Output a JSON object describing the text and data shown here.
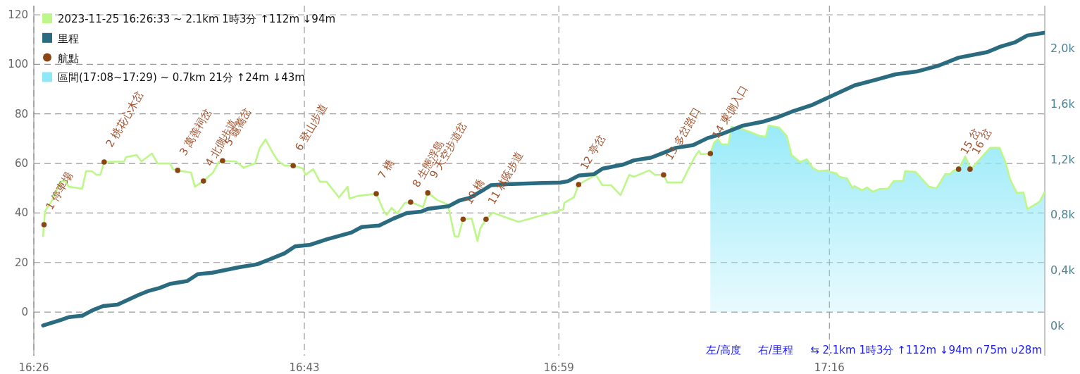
{
  "chart_data": {
    "type": "line",
    "xlim": [
      16.4333,
      17.4923
    ],
    "xticks": [
      {
        "value": 16.4333,
        "label": "16:26"
      },
      {
        "value": 16.7167,
        "label": "16:43"
      },
      {
        "value": 16.9833,
        "label": "16:59"
      },
      {
        "value": 17.2667,
        "label": "17:16"
      }
    ],
    "ylim": [
      -17.6,
      123.7
    ],
    "yticks": [
      0,
      20,
      40,
      60,
      80,
      100,
      120
    ],
    "y2lim": [
      -0.218,
      2.305
    ],
    "y2ticks": [
      {
        "value": 0,
        "label": "0k"
      },
      {
        "value": 0.4,
        "label": "0,4k"
      },
      {
        "value": 0.8,
        "label": "0,8k"
      },
      {
        "value": 1.2,
        "label": "1,2k"
      },
      {
        "value": 1.6,
        "label": "1,6k"
      },
      {
        "value": 2.0,
        "label": "2,0k"
      }
    ],
    "grid": true,
    "legend": "top left",
    "series": [
      {
        "name": "2023-11-25 16:26:33 ~ 2.1km 1時3分 ↑112m ↓94m",
        "color": "#bdf78a",
        "x": [
          16.443,
          16.445,
          16.45,
          16.454,
          16.461,
          16.466,
          16.47,
          16.484,
          16.488,
          16.494,
          16.499,
          16.503,
          16.507,
          16.528,
          16.53,
          16.541,
          16.546,
          16.557,
          16.563,
          16.576,
          16.579,
          16.584,
          16.598,
          16.602,
          16.611,
          16.621,
          16.627,
          16.631,
          16.645,
          16.653,
          16.665,
          16.67,
          16.676,
          16.684,
          16.689,
          16.696,
          16.705,
          16.715,
          16.718,
          16.726,
          16.733,
          16.74,
          16.753,
          16.762,
          16.764,
          16.773,
          16.792,
          16.8,
          16.803,
          16.808,
          16.814,
          16.822,
          16.828,
          16.841,
          16.846,
          16.856,
          16.867,
          16.874,
          16.878,
          16.883,
          16.892,
          16.898,
          16.901,
          16.907,
          16.914,
          16.941,
          16.988,
          16.989,
          16.999,
          17.004,
          17.022,
          17.029,
          17.038,
          17.048,
          17.057,
          17.062,
          17.078,
          17.084,
          17.093,
          17.097,
          17.112,
          17.119,
          17.126,
          17.13,
          17.132,
          17.142,
          17.146,
          17.15,
          17.154,
          17.161,
          17.164,
          17.173,
          17.185,
          17.194,
          17.2,
          17.203,
          17.214,
          17.222,
          17.227,
          17.236,
          17.243,
          17.249,
          17.255,
          17.265,
          17.267,
          17.274,
          17.277,
          17.285,
          17.288,
          17.291,
          17.293,
          17.301,
          17.306,
          17.312,
          17.32,
          17.328,
          17.334,
          17.344,
          17.346,
          17.357,
          17.371,
          17.379,
          17.388,
          17.393,
          17.397,
          17.402,
          17.409,
          17.415,
          17.435,
          17.445,
          17.451,
          17.456,
          17.463,
          17.47,
          17.474,
          17.487,
          17.492
        ],
        "values": [
          30.7,
          40.7,
          43.5,
          46.3,
          52.6,
          52.9,
          50.6,
          49.8,
          56.9,
          56.9,
          55.4,
          55.4,
          60.6,
          60.8,
          62.6,
          63.4,
          60.8,
          64.0,
          60.0,
          60.0,
          57.7,
          57.2,
          56.3,
          50.6,
          52.9,
          56.3,
          60.6,
          61.1,
          60.8,
          58.3,
          60.0,
          66.3,
          69.7,
          64.0,
          61.1,
          59.1,
          59.1,
          58.0,
          55.4,
          57.7,
          52.6,
          52.6,
          46.3,
          50.6,
          45.8,
          46.9,
          47.8,
          40.7,
          39.2,
          42.1,
          39.8,
          44.1,
          44.4,
          42.4,
          48.1,
          45.2,
          43.5,
          30.7,
          30.4,
          37.5,
          37.8,
          28.7,
          33.8,
          37.5,
          40.1,
          36.4,
          41.5,
          44.1,
          46.3,
          51.5,
          55.4,
          51.2,
          51.2,
          47.2,
          55.4,
          54.6,
          57.2,
          55.4,
          55.4,
          52.3,
          52.3,
          57.7,
          62.8,
          65.1,
          63.7,
          64.0,
          68.5,
          69.7,
          67.7,
          67.7,
          74.8,
          74.2,
          72.5,
          71.1,
          70.8,
          75.3,
          74.5,
          71.1,
          63.4,
          60.6,
          61.7,
          58.3,
          56.9,
          57.2,
          56.6,
          56.0,
          54.6,
          54.0,
          52.0,
          50.0,
          50.9,
          49.2,
          50.3,
          48.6,
          49.8,
          49.8,
          52.9,
          52.9,
          56.9,
          56.6,
          50.6,
          50.0,
          55.7,
          55.7,
          57.2,
          57.7,
          62.8,
          57.7,
          66.3,
          66.3,
          60.6,
          53.5,
          48.1,
          48.3,
          41.5,
          44.6,
          48.3
        ]
      },
      {
        "name": "里程",
        "type": "line",
        "axis": "y2",
        "color": "#2b6b7f",
        "x": [
          16.443,
          16.462,
          16.47,
          16.484,
          16.495,
          16.506,
          16.521,
          16.543,
          16.554,
          16.565,
          16.576,
          16.594,
          16.605,
          16.62,
          16.649,
          16.667,
          16.678,
          16.696,
          16.707,
          16.722,
          16.74,
          16.766,
          16.777,
          16.795,
          16.81,
          16.824,
          16.839,
          16.846,
          16.868,
          16.879,
          16.89,
          16.905,
          16.912,
          16.934,
          16.985,
          16.993,
          17.004,
          17.02,
          17.029,
          17.051,
          17.062,
          17.08,
          17.095,
          17.106,
          17.124,
          17.139,
          17.154,
          17.176,
          17.198,
          17.212,
          17.227,
          17.249,
          17.271,
          17.293,
          17.315,
          17.336,
          17.358,
          17.38,
          17.402,
          17.432,
          17.446,
          17.461,
          17.474,
          17.492
        ],
        "values": [
          0.0,
          0.04,
          0.06,
          0.07,
          0.11,
          0.14,
          0.15,
          0.22,
          0.25,
          0.27,
          0.3,
          0.32,
          0.37,
          0.38,
          0.42,
          0.44,
          0.47,
          0.52,
          0.57,
          0.58,
          0.62,
          0.67,
          0.71,
          0.72,
          0.77,
          0.81,
          0.82,
          0.84,
          0.86,
          0.9,
          0.92,
          0.98,
          1.01,
          1.02,
          1.03,
          1.04,
          1.08,
          1.09,
          1.13,
          1.16,
          1.19,
          1.21,
          1.25,
          1.28,
          1.3,
          1.35,
          1.38,
          1.44,
          1.47,
          1.5,
          1.54,
          1.59,
          1.66,
          1.73,
          1.77,
          1.81,
          1.83,
          1.87,
          1.93,
          1.97,
          2.01,
          2.04,
          2.09,
          2.11
        ]
      },
      {
        "name": "航點",
        "type": "scatter",
        "color": "#8b4513",
        "x": [
          16.444,
          16.507,
          16.584,
          16.611,
          16.631,
          16.705,
          16.792,
          16.828,
          16.846,
          16.883,
          16.907,
          17.004,
          17.093,
          17.142,
          17.402,
          17.414
        ],
        "values": [
          35.3,
          60.6,
          57.2,
          52.9,
          61.1,
          59.1,
          47.8,
          44.4,
          48.1,
          37.5,
          37.5,
          51.5,
          55.4,
          64.0,
          57.7,
          57.7
        ]
      },
      {
        "name": "區間(17:08~17:29) ~ 0.7km 21分 ↑24m ↓43m",
        "type": "area",
        "color": "#8ee8f8",
        "x": [
          17.142,
          17.146,
          17.15,
          17.154,
          17.161,
          17.164,
          17.173,
          17.185,
          17.194,
          17.2,
          17.203,
          17.214,
          17.222,
          17.227,
          17.236,
          17.243,
          17.249,
          17.255,
          17.265,
          17.267,
          17.274,
          17.277,
          17.285,
          17.288,
          17.291,
          17.293,
          17.301,
          17.306,
          17.312,
          17.32,
          17.328,
          17.334,
          17.344,
          17.346,
          17.357,
          17.371,
          17.379,
          17.388,
          17.393,
          17.397,
          17.402,
          17.409,
          17.415,
          17.435,
          17.445,
          17.451,
          17.456,
          17.463,
          17.47,
          17.474,
          17.487,
          17.492
        ],
        "values": [
          64.0,
          68.5,
          69.7,
          67.7,
          67.7,
          74.8,
          74.2,
          72.5,
          71.1,
          70.8,
          75.3,
          74.5,
          71.1,
          63.4,
          60.6,
          61.7,
          58.3,
          56.9,
          57.2,
          56.6,
          56.0,
          54.6,
          54.0,
          52.0,
          50.0,
          50.9,
          49.2,
          50.3,
          48.6,
          49.8,
          49.8,
          52.9,
          52.9,
          56.9,
          56.6,
          50.6,
          50.0,
          55.7,
          55.7,
          57.2,
          57.7,
          62.8,
          57.7,
          66.3,
          66.3,
          60.6,
          53.5,
          48.1,
          48.3,
          41.5,
          44.6,
          48.3
        ]
      }
    ],
    "annotations": [
      {
        "text": "1 停車場",
        "x": 16.444,
        "y": 35.3
      },
      {
        "text": "2 桃花心木岔",
        "x": 16.507,
        "y": 60.6
      },
      {
        "text": "3 萬善祠岔",
        "x": 16.584,
        "y": 57.2
      },
      {
        "text": "4 北側步道",
        "x": 16.611,
        "y": 52.9
      },
      {
        "text": "5 龜蕎岔",
        "x": 16.631,
        "y": 61.1
      },
      {
        "text": "6 登山步道",
        "x": 16.705,
        "y": 59.1
      },
      {
        "text": "7 橋",
        "x": 16.792,
        "y": 47.8
      },
      {
        "text": "8 生態浮島",
        "x": 16.828,
        "y": 44.4
      },
      {
        "text": "9 天空步道岔",
        "x": 16.846,
        "y": 48.1
      },
      {
        "text": "10 橋",
        "x": 16.883,
        "y": 37.5
      },
      {
        "text": "11 林蔭步道",
        "x": 16.907,
        "y": 37.5
      },
      {
        "text": "12 亭岔",
        "x": 17.004,
        "y": 51.5
      },
      {
        "text": "13 多岔路口",
        "x": 17.093,
        "y": 55.4
      },
      {
        "text": "14 東側入口",
        "x": 17.142,
        "y": 64.0
      },
      {
        "text": "15 岔",
        "x": 17.402,
        "y": 57.7
      },
      {
        "text": "16 岔",
        "x": 17.414,
        "y": 57.7
      },
      "左/高度",
      "右/里程",
      "⇆ 2.1km 1時3分 ↑112m ↓94m ∩75m ∪28m"
    ]
  }
}
